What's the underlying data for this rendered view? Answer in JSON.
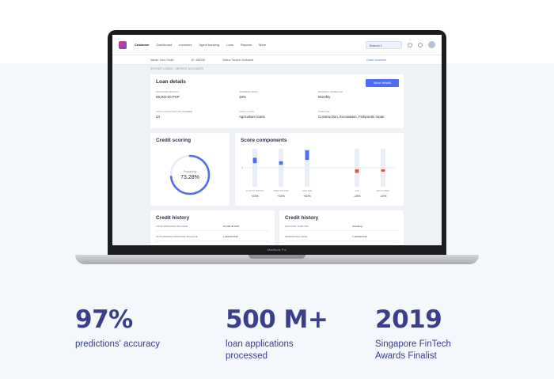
{
  "nav": {
    "customer": "Customer",
    "items": [
      "Dashboard",
      "Investors",
      "Agent banking",
      "Loan",
      "Reports",
      "More"
    ],
    "branch": "Branch 1"
  },
  "subbar": {
    "name": "Name: John Smith",
    "id": "ID: 483290",
    "status": "Status Scored: Activated",
    "close": "Close customer"
  },
  "breadcrumb": "DEPOSIT LOANS  ›  DEPOSIT ACCOUNTS",
  "loan_details": {
    "title": "Loan details",
    "more_button": "More details",
    "fields": [
      {
        "label": "Principal amount",
        "value": "88,000.00 PHP"
      },
      {
        "label": "Interest rate",
        "value": "18%"
      },
      {
        "label": "Payment schedule",
        "value": "Monthly"
      },
      {
        "label": "Total amortization number",
        "value": "24"
      },
      {
        "label": "Loan class",
        "value": "Agriculture loans"
      },
      {
        "label": "Purpose",
        "value": "Construction, Excavation, Fishponds repair"
      }
    ]
  },
  "credit_scoring": {
    "title": "Credit scoring",
    "label": "Probability",
    "value": "73.28%",
    "fraction": 0.7328
  },
  "score_components": {
    "title": "Score components",
    "axis_tick": "0",
    "items": [
      {
        "label": "ACCOUNT HISTORY",
        "value": "+23%",
        "delta": 0.23,
        "color": "#4f6ef7"
      },
      {
        "label": "CREDIT HISTORY",
        "value": "+15%",
        "delta": 0.15,
        "color": "#4f6ef7"
      },
      {
        "label": "LOAN SIZE",
        "value": "+40%",
        "delta": 0.4,
        "color": "#4f6ef7"
      },
      {
        "label": "AGE",
        "value": "-15%",
        "delta": -0.15,
        "color": "#e35a3b"
      },
      {
        "label": "EMPLOYMENT",
        "value": "-10%",
        "delta": -0.1,
        "color": "#e35a3b"
      }
    ]
  },
  "credit_history_1": {
    "title": "Credit history",
    "rows": [
      {
        "label": "TOTAL PRINCIPAL BALANCE",
        "value": "10,000.00 PHP"
      },
      {
        "label": "OUTSTANDING PRINCIPAL BALANCE",
        "value": "1,200.00 PHP"
      }
    ]
  },
  "credit_history_2": {
    "title": "Credit history",
    "rows": [
      {
        "label": "ACCOUNT SUBTYPE",
        "value": "Checking"
      },
      {
        "label": "MINIMUM BALANCE",
        "value": "7,100.00 PHP"
      }
    ]
  },
  "laptop_brand": "MacBook Pro",
  "stats": [
    {
      "big": "97%",
      "text": "predictions' accuracy"
    },
    {
      "big": "500 M+",
      "text": "loan applications processed"
    },
    {
      "big": "2019",
      "text": "Singapore FinTech Awards Finalist"
    }
  ],
  "colors": {
    "accent": "#4f6ef7",
    "negative": "#e35a3b",
    "stat": "#3b3e8c"
  }
}
